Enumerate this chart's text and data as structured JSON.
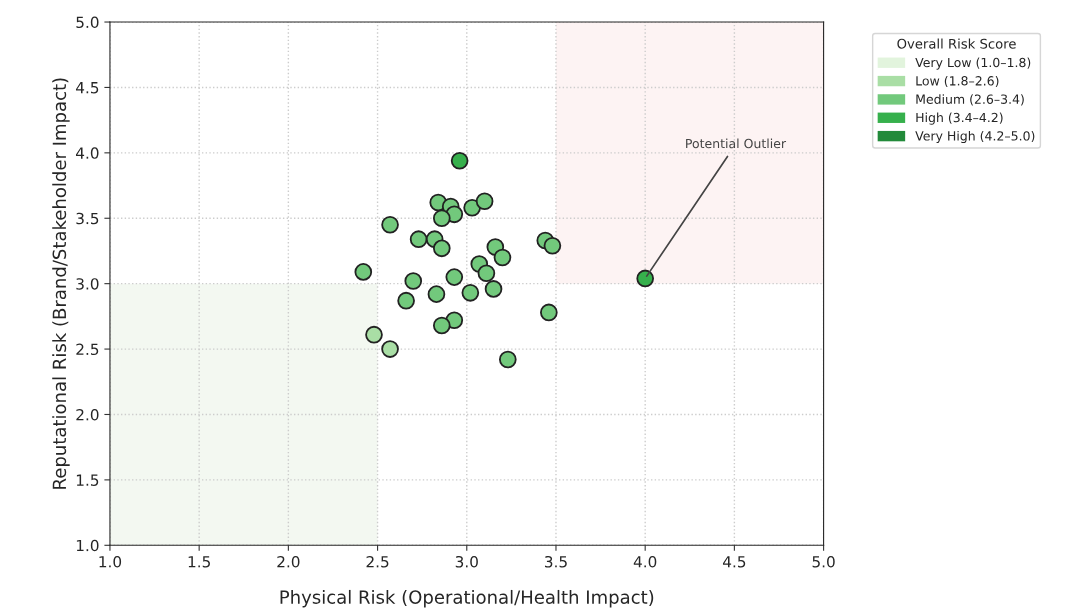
{
  "chart_data": {
    "type": "scatter",
    "xlabel": "Physical Risk (Operational/Health Impact)",
    "ylabel": "Reputational Risk (Brand/Stakeholder Impact)",
    "legend_title": "Overall Risk Score",
    "xlim": [
      1.0,
      5.0
    ],
    "ylim": [
      1.0,
      5.0
    ],
    "xticks": [
      {
        "value": 1.0,
        "label": "1.0"
      },
      {
        "value": 1.5,
        "label": "1.5"
      },
      {
        "value": 2.0,
        "label": "2.0"
      },
      {
        "value": 2.5,
        "label": "2.5"
      },
      {
        "value": 3.0,
        "label": "3.0"
      },
      {
        "value": 3.5,
        "label": "3.5"
      },
      {
        "value": 4.0,
        "label": "4.0"
      },
      {
        "value": 4.5,
        "label": "4.5"
      },
      {
        "value": 5.0,
        "label": "5.0"
      }
    ],
    "yticks": [
      {
        "value": 1.0,
        "label": "1.0"
      },
      {
        "value": 1.5,
        "label": "1.5"
      },
      {
        "value": 2.0,
        "label": "2.0"
      },
      {
        "value": 2.5,
        "label": "2.5"
      },
      {
        "value": 3.0,
        "label": "3.0"
      },
      {
        "value": 3.5,
        "label": "3.5"
      },
      {
        "value": 4.0,
        "label": "4.0"
      },
      {
        "value": 4.5,
        "label": "4.5"
      },
      {
        "value": 5.0,
        "label": "5.0"
      }
    ],
    "grid": true,
    "legend": "top right",
    "marker": "circle",
    "annotations": [
      {
        "text": "Potential Outlier",
        "x": 4.0,
        "y": 3.04
      }
    ],
    "series": [
      {
        "name": "Very Low (1.0–1.8)",
        "color": "#e2f4dd"
      },
      {
        "name": "Low (1.8–2.6)",
        "color": "#a9dea5",
        "x": [
          2.48,
          2.57
        ],
        "values": [
          2.61,
          2.5
        ]
      },
      {
        "name": "Medium (2.6–3.4)",
        "color": "#72c97c",
        "x": [
          2.84,
          2.91,
          2.93,
          2.86,
          3.03,
          3.1,
          2.57,
          2.73,
          2.82,
          2.86,
          3.16,
          3.2,
          3.44,
          3.48,
          3.07,
          3.11,
          2.42,
          2.7,
          2.93,
          3.02,
          3.15,
          2.83,
          2.66,
          2.93,
          2.86,
          3.46,
          3.23
        ],
        "values": [
          3.62,
          3.59,
          3.53,
          3.5,
          3.58,
          3.63,
          3.45,
          3.34,
          3.34,
          3.27,
          3.28,
          3.2,
          3.33,
          3.29,
          3.15,
          3.08,
          3.09,
          3.02,
          3.05,
          2.93,
          2.96,
          2.92,
          2.87,
          2.72,
          2.68,
          2.78,
          2.42
        ]
      },
      {
        "name": "High (3.4–4.2)",
        "color": "#36b04c",
        "x": [
          2.96,
          4.0
        ],
        "values": [
          3.94,
          3.04
        ]
      },
      {
        "name": "Very High (4.2–5.0)",
        "color": "#228a3a"
      }
    ]
  }
}
